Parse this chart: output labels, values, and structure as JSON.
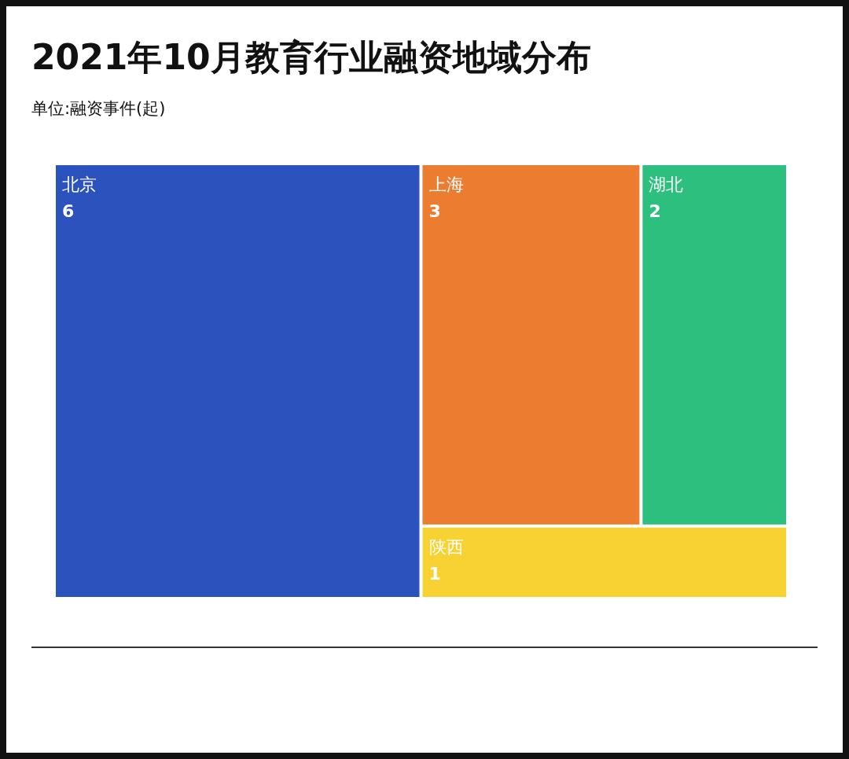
{
  "chart_data": {
    "type": "other",
    "title": "2021年10月教育行业融资地域分布",
    "subtitle": "单位:融资事件(起)",
    "categories": [
      "北京",
      "上海",
      "湖北",
      "陕西"
    ],
    "values": [
      6,
      3,
      2,
      1
    ],
    "colors": [
      "#2c52be",
      "#ec7d30",
      "#2dbf7e",
      "#f8d132"
    ],
    "data_labels": true
  }
}
